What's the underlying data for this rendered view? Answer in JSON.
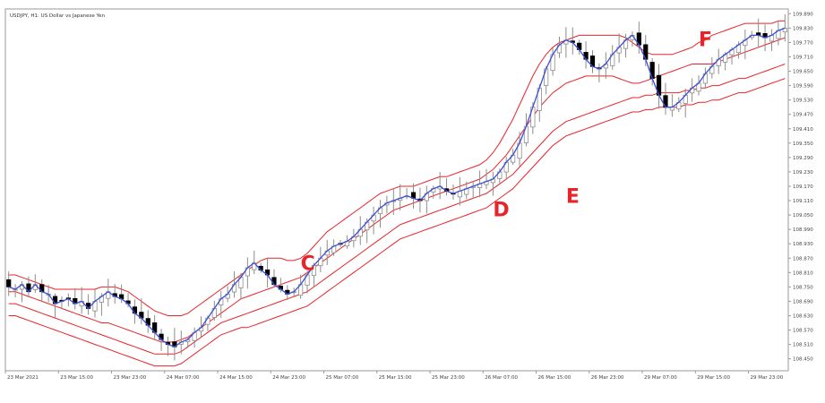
{
  "header": {
    "title": "USDJPY, H1:  US Dollar vs Japanese Yen"
  },
  "colors": {
    "background": "#ffffff",
    "frame": "#9a9a9a",
    "bull_candle": "#ffffff",
    "bear_candle": "#000000",
    "wick": "#8c8c8c",
    "blue_line": "#3a4fd8",
    "red_bands": "#e8242a",
    "annotation": "#e8242a",
    "tick_text": "#444444"
  },
  "annotations": [
    {
      "label": "C",
      "x": 44,
      "y": 108.82
    },
    {
      "label": "D",
      "x": 73,
      "y": 109.045
    },
    {
      "label": "E",
      "x": 84,
      "y": 109.1
    },
    {
      "label": "F",
      "x": 104,
      "y": 109.755
    }
  ],
  "chart_data": {
    "type": "candlestick",
    "title": "USDJPY, H1:  US Dollar vs Japanese Yen",
    "xlabel": "",
    "ylabel": "",
    "ylim": [
      108.4,
      109.91
    ],
    "grid": false,
    "legend": "none",
    "x_ticks": [
      {
        "label": "23 Mar 2021",
        "x": 0
      },
      {
        "label": "23 Mar 15:00",
        "x": 8
      },
      {
        "label": "23 Mar 23:00",
        "x": 16
      },
      {
        "label": "24 Mar 07:00",
        "x": 24
      },
      {
        "label": "24 Mar 15:00",
        "x": 32
      },
      {
        "label": "24 Mar 23:00",
        "x": 40
      },
      {
        "label": "25 Mar 07:00",
        "x": 48
      },
      {
        "label": "25 Mar 15:00",
        "x": 56
      },
      {
        "label": "25 Mar 23:00",
        "x": 64
      },
      {
        "label": "26 Mar 07:00",
        "x": 72
      },
      {
        "label": "26 Mar 15:00",
        "x": 80
      },
      {
        "label": "26 Mar 23:00",
        "x": 88
      },
      {
        "label": "29 Mar 07:00",
        "x": 96
      },
      {
        "label": "29 Mar 15:00",
        "x": 104
      },
      {
        "label": "29 Mar 23:00",
        "x": 112
      }
    ],
    "y_ticks": [
      "109.890",
      "109.830",
      "109.770",
      "109.710",
      "109.650",
      "109.590",
      "109.530",
      "109.470",
      "109.410",
      "109.350",
      "109.290",
      "109.230",
      "109.170",
      "109.110",
      "109.050",
      "108.990",
      "108.930",
      "108.870",
      "108.810",
      "108.750",
      "108.690",
      "108.630",
      "108.570",
      "108.510",
      "108.450"
    ],
    "candle_closes": [
      108.75,
      108.74,
      108.76,
      108.73,
      108.76,
      108.73,
      108.72,
      108.68,
      108.69,
      108.7,
      108.68,
      108.69,
      108.66,
      108.69,
      108.71,
      108.73,
      108.71,
      108.7,
      108.68,
      108.64,
      108.62,
      108.59,
      108.56,
      108.53,
      108.51,
      108.5,
      108.52,
      108.53,
      108.56,
      108.58,
      108.62,
      108.66,
      108.7,
      108.72,
      108.76,
      108.79,
      108.83,
      108.85,
      108.82,
      108.8,
      108.76,
      108.74,
      108.72,
      108.73,
      108.76,
      108.8,
      108.84,
      108.87,
      108.9,
      108.92,
      108.93,
      108.94,
      108.96,
      108.99,
      109.02,
      109.05,
      109.08,
      109.1,
      109.11,
      109.12,
      109.13,
      109.12,
      109.11,
      109.14,
      109.16,
      109.17,
      109.15,
      109.14,
      109.15,
      109.16,
      109.17,
      109.18,
      109.19,
      109.2,
      109.23,
      109.27,
      109.3,
      109.35,
      109.42,
      109.5,
      109.58,
      109.66,
      109.72,
      109.76,
      109.78,
      109.77,
      109.74,
      109.7,
      109.67,
      109.66,
      109.68,
      109.72,
      109.75,
      109.78,
      109.8,
      109.76,
      109.7,
      109.62,
      109.55,
      109.5,
      109.5,
      109.52,
      109.55,
      109.58,
      109.6,
      109.64,
      109.67,
      109.7,
      109.72,
      109.74,
      109.76,
      109.78,
      109.8,
      109.8,
      109.79,
      109.8,
      109.82,
      109.83
    ],
    "series": [
      {
        "values": [
          108.75,
          108.74,
          108.76,
          108.73,
          108.76,
          108.73,
          108.72,
          108.68,
          108.69,
          108.7,
          108.68,
          108.69,
          108.66,
          108.69,
          108.71,
          108.73,
          108.71,
          108.7,
          108.68,
          108.64,
          108.62,
          108.59,
          108.56,
          108.53,
          108.51,
          108.5,
          108.52,
          108.53,
          108.56,
          108.58,
          108.62,
          108.66,
          108.7,
          108.72,
          108.76,
          108.79,
          108.83,
          108.85,
          108.82,
          108.8,
          108.76,
          108.74,
          108.72,
          108.73,
          108.76,
          108.8,
          108.84,
          108.87,
          108.9,
          108.92,
          108.93,
          108.94,
          108.96,
          108.99,
          109.02,
          109.05,
          109.08,
          109.1,
          109.11,
          109.12,
          109.13,
          109.12,
          109.11,
          109.14,
          109.16,
          109.17,
          109.15,
          109.14,
          109.15,
          109.16,
          109.17,
          109.18,
          109.19,
          109.2,
          109.23,
          109.27,
          109.3,
          109.35,
          109.42,
          109.5,
          109.58,
          109.66,
          109.72,
          109.76,
          109.78,
          109.77,
          109.74,
          109.7,
          109.67,
          109.66,
          109.68,
          109.72,
          109.75,
          109.78,
          109.8,
          109.76,
          109.7,
          109.62,
          109.55,
          109.5,
          109.5,
          109.52,
          109.55,
          109.58,
          109.6,
          109.64,
          109.67,
          109.7,
          109.72,
          109.74,
          109.76,
          109.78,
          109.8,
          109.8,
          109.79,
          109.8,
          109.82,
          109.83
        ],
        "color": "#3a4fd8"
      },
      {
        "values": [
          108.8,
          108.8,
          108.79,
          108.78,
          108.77,
          108.76,
          108.75,
          108.74,
          108.74,
          108.74,
          108.74,
          108.74,
          108.74,
          108.74,
          108.75,
          108.75,
          108.75,
          108.74,
          108.73,
          108.71,
          108.69,
          108.67,
          108.65,
          108.64,
          108.63,
          108.63,
          108.63,
          108.64,
          108.66,
          108.68,
          108.7,
          108.72,
          108.74,
          108.76,
          108.78,
          108.8,
          108.82,
          108.84,
          108.86,
          108.87,
          108.87,
          108.87,
          108.86,
          108.86,
          108.87,
          108.89,
          108.92,
          108.95,
          108.98,
          109.0,
          109.02,
          109.04,
          109.06,
          109.08,
          109.1,
          109.12,
          109.14,
          109.15,
          109.16,
          109.17,
          109.17,
          109.17,
          109.18,
          109.19,
          109.2,
          109.21,
          109.21,
          109.22,
          109.23,
          109.24,
          109.25,
          109.26,
          109.28,
          109.31,
          109.35,
          109.4,
          109.45,
          109.51,
          109.57,
          109.63,
          109.68,
          109.72,
          109.75,
          109.77,
          109.78,
          109.79,
          109.8,
          109.8,
          109.8,
          109.8,
          109.8,
          109.8,
          109.8,
          109.79,
          109.77,
          109.75,
          109.73,
          109.72,
          109.72,
          109.72,
          109.72,
          109.73,
          109.74,
          109.75,
          109.77,
          109.78,
          109.8,
          109.81,
          109.82,
          109.83,
          109.84,
          109.85,
          109.85,
          109.85,
          109.85,
          109.85,
          109.86,
          109.86
        ],
        "color": "#e8242a"
      },
      {
        "values": [
          108.73,
          108.73,
          108.72,
          108.71,
          108.7,
          108.69,
          108.68,
          108.67,
          108.66,
          108.65,
          108.64,
          108.63,
          108.62,
          108.61,
          108.6,
          108.6,
          108.59,
          108.58,
          108.57,
          108.56,
          108.55,
          108.54,
          108.53,
          108.52,
          108.52,
          108.52,
          108.53,
          108.54,
          108.56,
          108.58,
          108.6,
          108.62,
          108.64,
          108.66,
          108.68,
          108.7,
          108.71,
          108.72,
          108.73,
          108.74,
          108.75,
          108.76,
          108.77,
          108.78,
          108.79,
          108.81,
          108.83,
          108.85,
          108.87,
          108.89,
          108.91,
          108.93,
          108.95,
          108.97,
          108.99,
          109.01,
          109.03,
          109.05,
          109.07,
          109.08,
          109.09,
          109.1,
          109.11,
          109.12,
          109.13,
          109.14,
          109.15,
          109.16,
          109.17,
          109.18,
          109.19,
          109.2,
          109.22,
          109.24,
          109.27,
          109.3,
          109.34,
          109.38,
          109.42,
          109.46,
          109.5,
          109.53,
          109.56,
          109.58,
          109.6,
          109.61,
          109.62,
          109.63,
          109.63,
          109.63,
          109.63,
          109.63,
          109.62,
          109.61,
          109.6,
          109.6,
          109.61,
          109.62,
          109.63,
          109.64,
          109.65,
          109.66,
          109.67,
          109.68,
          109.68,
          109.68,
          109.68,
          109.69,
          109.7,
          109.71,
          109.72,
          109.73,
          109.74,
          109.75,
          109.76,
          109.77,
          109.78,
          109.79
        ],
        "color": "#e8242a"
      },
      {
        "values": [
          108.68,
          108.68,
          108.67,
          108.66,
          108.65,
          108.64,
          108.63,
          108.62,
          108.61,
          108.6,
          108.59,
          108.58,
          108.57,
          108.56,
          108.55,
          108.54,
          108.53,
          108.52,
          108.51,
          108.5,
          108.49,
          108.48,
          108.47,
          108.47,
          108.47,
          108.47,
          108.48,
          108.5,
          108.52,
          108.54,
          108.56,
          108.58,
          108.6,
          108.61,
          108.62,
          108.63,
          108.64,
          108.65,
          108.66,
          108.67,
          108.68,
          108.69,
          108.7,
          108.71,
          108.72,
          108.73,
          108.75,
          108.77,
          108.79,
          108.81,
          108.83,
          108.85,
          108.87,
          108.89,
          108.91,
          108.93,
          108.95,
          108.97,
          108.99,
          109.01,
          109.02,
          109.03,
          109.04,
          109.05,
          109.06,
          109.07,
          109.08,
          109.09,
          109.1,
          109.11,
          109.12,
          109.13,
          109.14,
          109.16,
          109.18,
          109.2,
          109.22,
          109.25,
          109.28,
          109.31,
          109.34,
          109.37,
          109.4,
          109.42,
          109.44,
          109.45,
          109.46,
          109.47,
          109.48,
          109.49,
          109.5,
          109.51,
          109.52,
          109.53,
          109.54,
          109.54,
          109.55,
          109.55,
          109.56,
          109.56,
          109.56,
          109.56,
          109.57,
          109.57,
          109.58,
          109.58,
          109.59,
          109.59,
          109.6,
          109.61,
          109.62,
          109.62,
          109.63,
          109.64,
          109.65,
          109.66,
          109.67,
          109.68
        ],
        "color": "#e8242a"
      },
      {
        "values": [
          108.63,
          108.63,
          108.62,
          108.61,
          108.6,
          108.59,
          108.58,
          108.57,
          108.56,
          108.55,
          108.54,
          108.53,
          108.52,
          108.51,
          108.5,
          108.49,
          108.48,
          108.47,
          108.46,
          108.45,
          108.44,
          108.43,
          108.42,
          108.42,
          108.42,
          108.42,
          108.43,
          108.45,
          108.47,
          108.49,
          108.51,
          108.53,
          108.55,
          108.56,
          108.57,
          108.58,
          108.58,
          108.59,
          108.6,
          108.61,
          108.62,
          108.63,
          108.64,
          108.65,
          108.66,
          108.67,
          108.69,
          108.71,
          108.73,
          108.75,
          108.77,
          108.79,
          108.81,
          108.83,
          108.85,
          108.87,
          108.89,
          108.91,
          108.93,
          108.95,
          108.96,
          108.97,
          108.98,
          108.99,
          109.0,
          109.01,
          109.02,
          109.03,
          109.04,
          109.05,
          109.06,
          109.07,
          109.08,
          109.1,
          109.12,
          109.14,
          109.16,
          109.19,
          109.22,
          109.25,
          109.28,
          109.31,
          109.34,
          109.36,
          109.38,
          109.39,
          109.4,
          109.41,
          109.42,
          109.43,
          109.44,
          109.45,
          109.46,
          109.47,
          109.48,
          109.48,
          109.49,
          109.49,
          109.5,
          109.5,
          109.5,
          109.5,
          109.51,
          109.51,
          109.52,
          109.52,
          109.53,
          109.53,
          109.54,
          109.55,
          109.56,
          109.56,
          109.57,
          109.58,
          109.59,
          109.6,
          109.61,
          109.62
        ],
        "color": "#e8242a"
      }
    ]
  }
}
